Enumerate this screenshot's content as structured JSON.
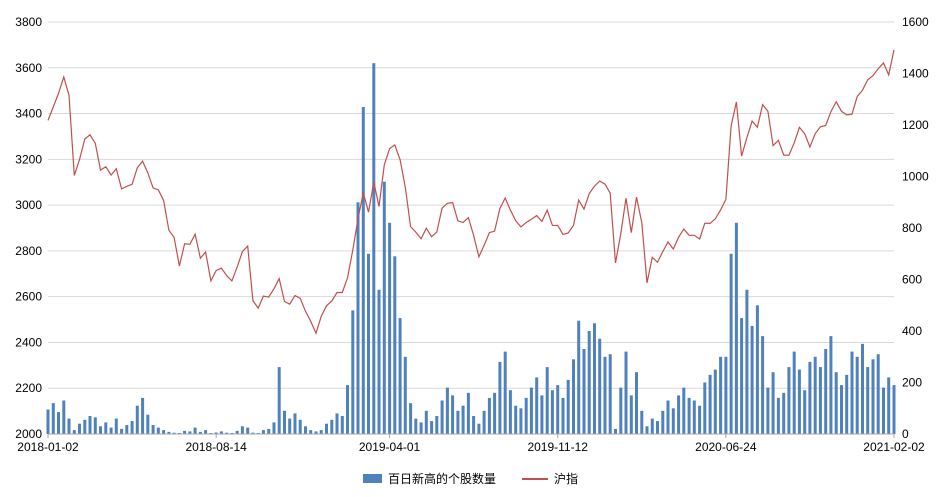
{
  "chart_data": {
    "type": "combo",
    "title": "",
    "note": "values estimated from chart, sampled ~weekly between first and last date",
    "x_start": "2018-01-02",
    "x_end": "2021-02-02",
    "x_ticks": [
      "2018-01-02",
      "2018-08-14",
      "2019-04-01",
      "2019-11-12",
      "2020-06-24",
      "2021-02-02"
    ],
    "x_tick_positions": [
      0,
      32,
      65,
      97,
      129,
      161
    ],
    "left_axis": {
      "min": 2000,
      "max": 3800,
      "step": 200,
      "ticks": [
        2000,
        2200,
        2400,
        2600,
        2800,
        3000,
        3200,
        3400,
        3600,
        3800
      ]
    },
    "right_axis": {
      "min": 0,
      "max": 1600,
      "step": 200,
      "ticks": [
        0,
        200,
        400,
        600,
        800,
        1000,
        1200,
        1400,
        1600
      ]
    },
    "grid": true,
    "grid_color": "#d9d9d9",
    "axis_color": "#a6a6a6",
    "background": "#ffffff",
    "legend_position": "bottom",
    "series": [
      {
        "name": "百日新高的个股数量",
        "type": "bar",
        "axis": "right",
        "color": "#4f81bd",
        "values": [
          95,
          120,
          85,
          130,
          60,
          15,
          40,
          55,
          70,
          65,
          30,
          45,
          25,
          60,
          20,
          35,
          50,
          110,
          140,
          75,
          35,
          25,
          15,
          8,
          5,
          4,
          12,
          10,
          25,
          8,
          15,
          4,
          6,
          10,
          5,
          4,
          12,
          30,
          25,
          5,
          4,
          15,
          20,
          45,
          260,
          90,
          60,
          80,
          55,
          30,
          15,
          10,
          15,
          40,
          55,
          80,
          70,
          190,
          480,
          900,
          1270,
          700,
          1440,
          560,
          980,
          820,
          690,
          450,
          300,
          120,
          60,
          45,
          90,
          50,
          70,
          130,
          180,
          150,
          90,
          110,
          160,
          70,
          40,
          90,
          140,
          160,
          280,
          320,
          170,
          110,
          100,
          140,
          180,
          220,
          150,
          260,
          170,
          190,
          140,
          210,
          290,
          440,
          330,
          400,
          430,
          370,
          300,
          310,
          20,
          180,
          320,
          150,
          240,
          90,
          30,
          60,
          50,
          90,
          130,
          100,
          150,
          180,
          140,
          130,
          110,
          200,
          230,
          250,
          300,
          300,
          700,
          820,
          450,
          560,
          420,
          500,
          380,
          180,
          240,
          140,
          160,
          260,
          320,
          250,
          170,
          280,
          300,
          260,
          330,
          380,
          240,
          190,
          230,
          320,
          300,
          350,
          260,
          290,
          310,
          180,
          220,
          190
        ]
      },
      {
        "name": "沪指",
        "type": "line",
        "axis": "left",
        "color": "#c0504d",
        "values": [
          3370,
          3429,
          3488,
          3560,
          3480,
          3130,
          3199,
          3289,
          3307,
          3270,
          3153,
          3168,
          3131,
          3159,
          3071,
          3082,
          3091,
          3163,
          3192,
          3141,
          3075,
          3067,
          3021,
          2890,
          2859,
          2734,
          2831,
          2829,
          2873,
          2768,
          2795,
          2669,
          2714,
          2725,
          2692,
          2669,
          2730,
          2797,
          2821,
          2583,
          2550,
          2603,
          2598,
          2635,
          2679,
          2579,
          2567,
          2605,
          2593,
          2536,
          2493,
          2440,
          2514,
          2560,
          2581,
          2618,
          2618,
          2682,
          2804,
          2941,
          3054,
          2969,
          3101,
          2994,
          3176,
          3247,
          3263,
          3198,
          3078,
          2906,
          2882,
          2853,
          2899,
          2862,
          2882,
          2987,
          3008,
          3011,
          2931,
          2924,
          2945,
          2868,
          2774,
          2824,
          2880,
          2886,
          2985,
          3031,
          2978,
          2932,
          2905,
          2924,
          2938,
          2954,
          2929,
          2978,
          2912,
          2911,
          2872,
          2878,
          2912,
          3022,
          2982,
          3050,
          3083,
          3105,
          3092,
          3052,
          2747,
          2876,
          3030,
          2880,
          3035,
          2923,
          2660,
          2772,
          2750,
          2797,
          2839,
          2808,
          2860,
          2895,
          2868,
          2868,
          2852,
          2921,
          2920,
          2940,
          2979,
          3025,
          3345,
          3451,
          3214,
          3295,
          3367,
          3340,
          3439,
          3410,
          3260,
          3283,
          3219,
          3218,
          3272,
          3340,
          3312,
          3254,
          3312,
          3342,
          3348,
          3408,
          3452,
          3410,
          3394,
          3397,
          3474,
          3502,
          3547,
          3566,
          3596,
          3621,
          3569,
          3678
        ]
      }
    ]
  },
  "legend": {
    "bar_label": "百日新高的个股数量",
    "line_label": "沪指"
  }
}
